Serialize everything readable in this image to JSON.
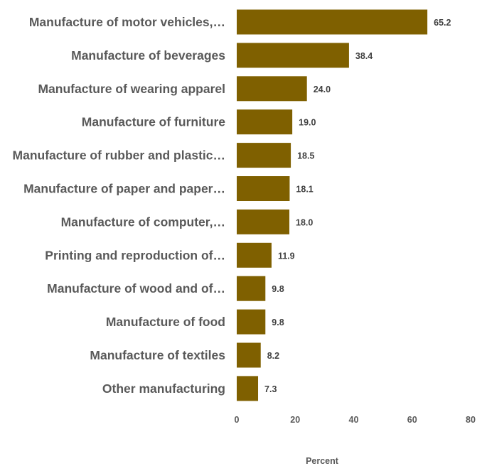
{
  "chart_data": {
    "type": "bar",
    "orientation": "horizontal",
    "categories": [
      "Manufacture of motor vehicles,…",
      "Manufacture of beverages",
      "Manufacture of wearing apparel",
      "Manufacture of furniture",
      "Manufacture of rubber and plastic…",
      "Manufacture of paper and paper…",
      "Manufacture of computer,…",
      "Printing and reproduction of…",
      "Manufacture of wood and of…",
      "Manufacture of food",
      "Manufacture of textiles",
      "Other manufacturing"
    ],
    "values": [
      65.2,
      38.4,
      24.0,
      19.0,
      18.5,
      18.1,
      18.0,
      11.9,
      9.8,
      9.8,
      8.2,
      7.3
    ],
    "value_labels": [
      "65.2",
      "38.4",
      "24.0",
      "19.0",
      "18.5",
      "18.1",
      "18.0",
      "11.9",
      "9.8",
      "9.8",
      "8.2",
      "7.3"
    ],
    "xlabel": "Percent",
    "xlim": [
      0,
      80
    ],
    "xticks": [
      0,
      20,
      40,
      60,
      80
    ],
    "xtick_labels": [
      "0",
      "20",
      "40",
      "60",
      "80"
    ],
    "grid": false,
    "bar_color": "#7f6000"
  }
}
